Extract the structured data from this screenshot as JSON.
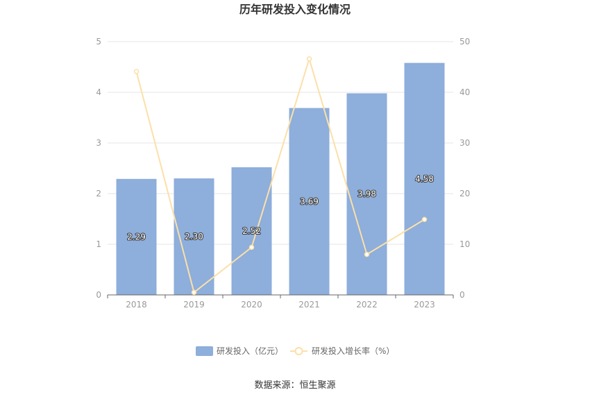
{
  "chart_data": {
    "type": "bar",
    "title": "历年研发投入变化情况",
    "categories": [
      "2018",
      "2019",
      "2020",
      "2021",
      "2022",
      "2023"
    ],
    "series": [
      {
        "name": "研发投入（亿元）",
        "type": "bar",
        "axis": "left",
        "color": "#8eaedb",
        "values": [
          2.29,
          2.3,
          2.52,
          3.69,
          3.98,
          4.58
        ],
        "labels": [
          "2.29",
          "2.30",
          "2.52",
          "3.69",
          "3.98",
          "4.58"
        ]
      },
      {
        "name": "研发投入增长率（%）",
        "type": "line",
        "axis": "right",
        "color": "#fbe0a8",
        "values": [
          44.1,
          0.5,
          9.4,
          46.6,
          8.0,
          14.9
        ]
      }
    ],
    "y_left": {
      "min": 0,
      "max": 5,
      "ticks": [
        "0",
        "1",
        "2",
        "3",
        "4",
        "5"
      ]
    },
    "y_right": {
      "min": 0,
      "max": 50,
      "ticks": [
        "0",
        "10",
        "20",
        "30",
        "40",
        "50"
      ]
    },
    "grid": true,
    "legend": "bottom-center",
    "source": "数据来源：恒生聚源"
  }
}
